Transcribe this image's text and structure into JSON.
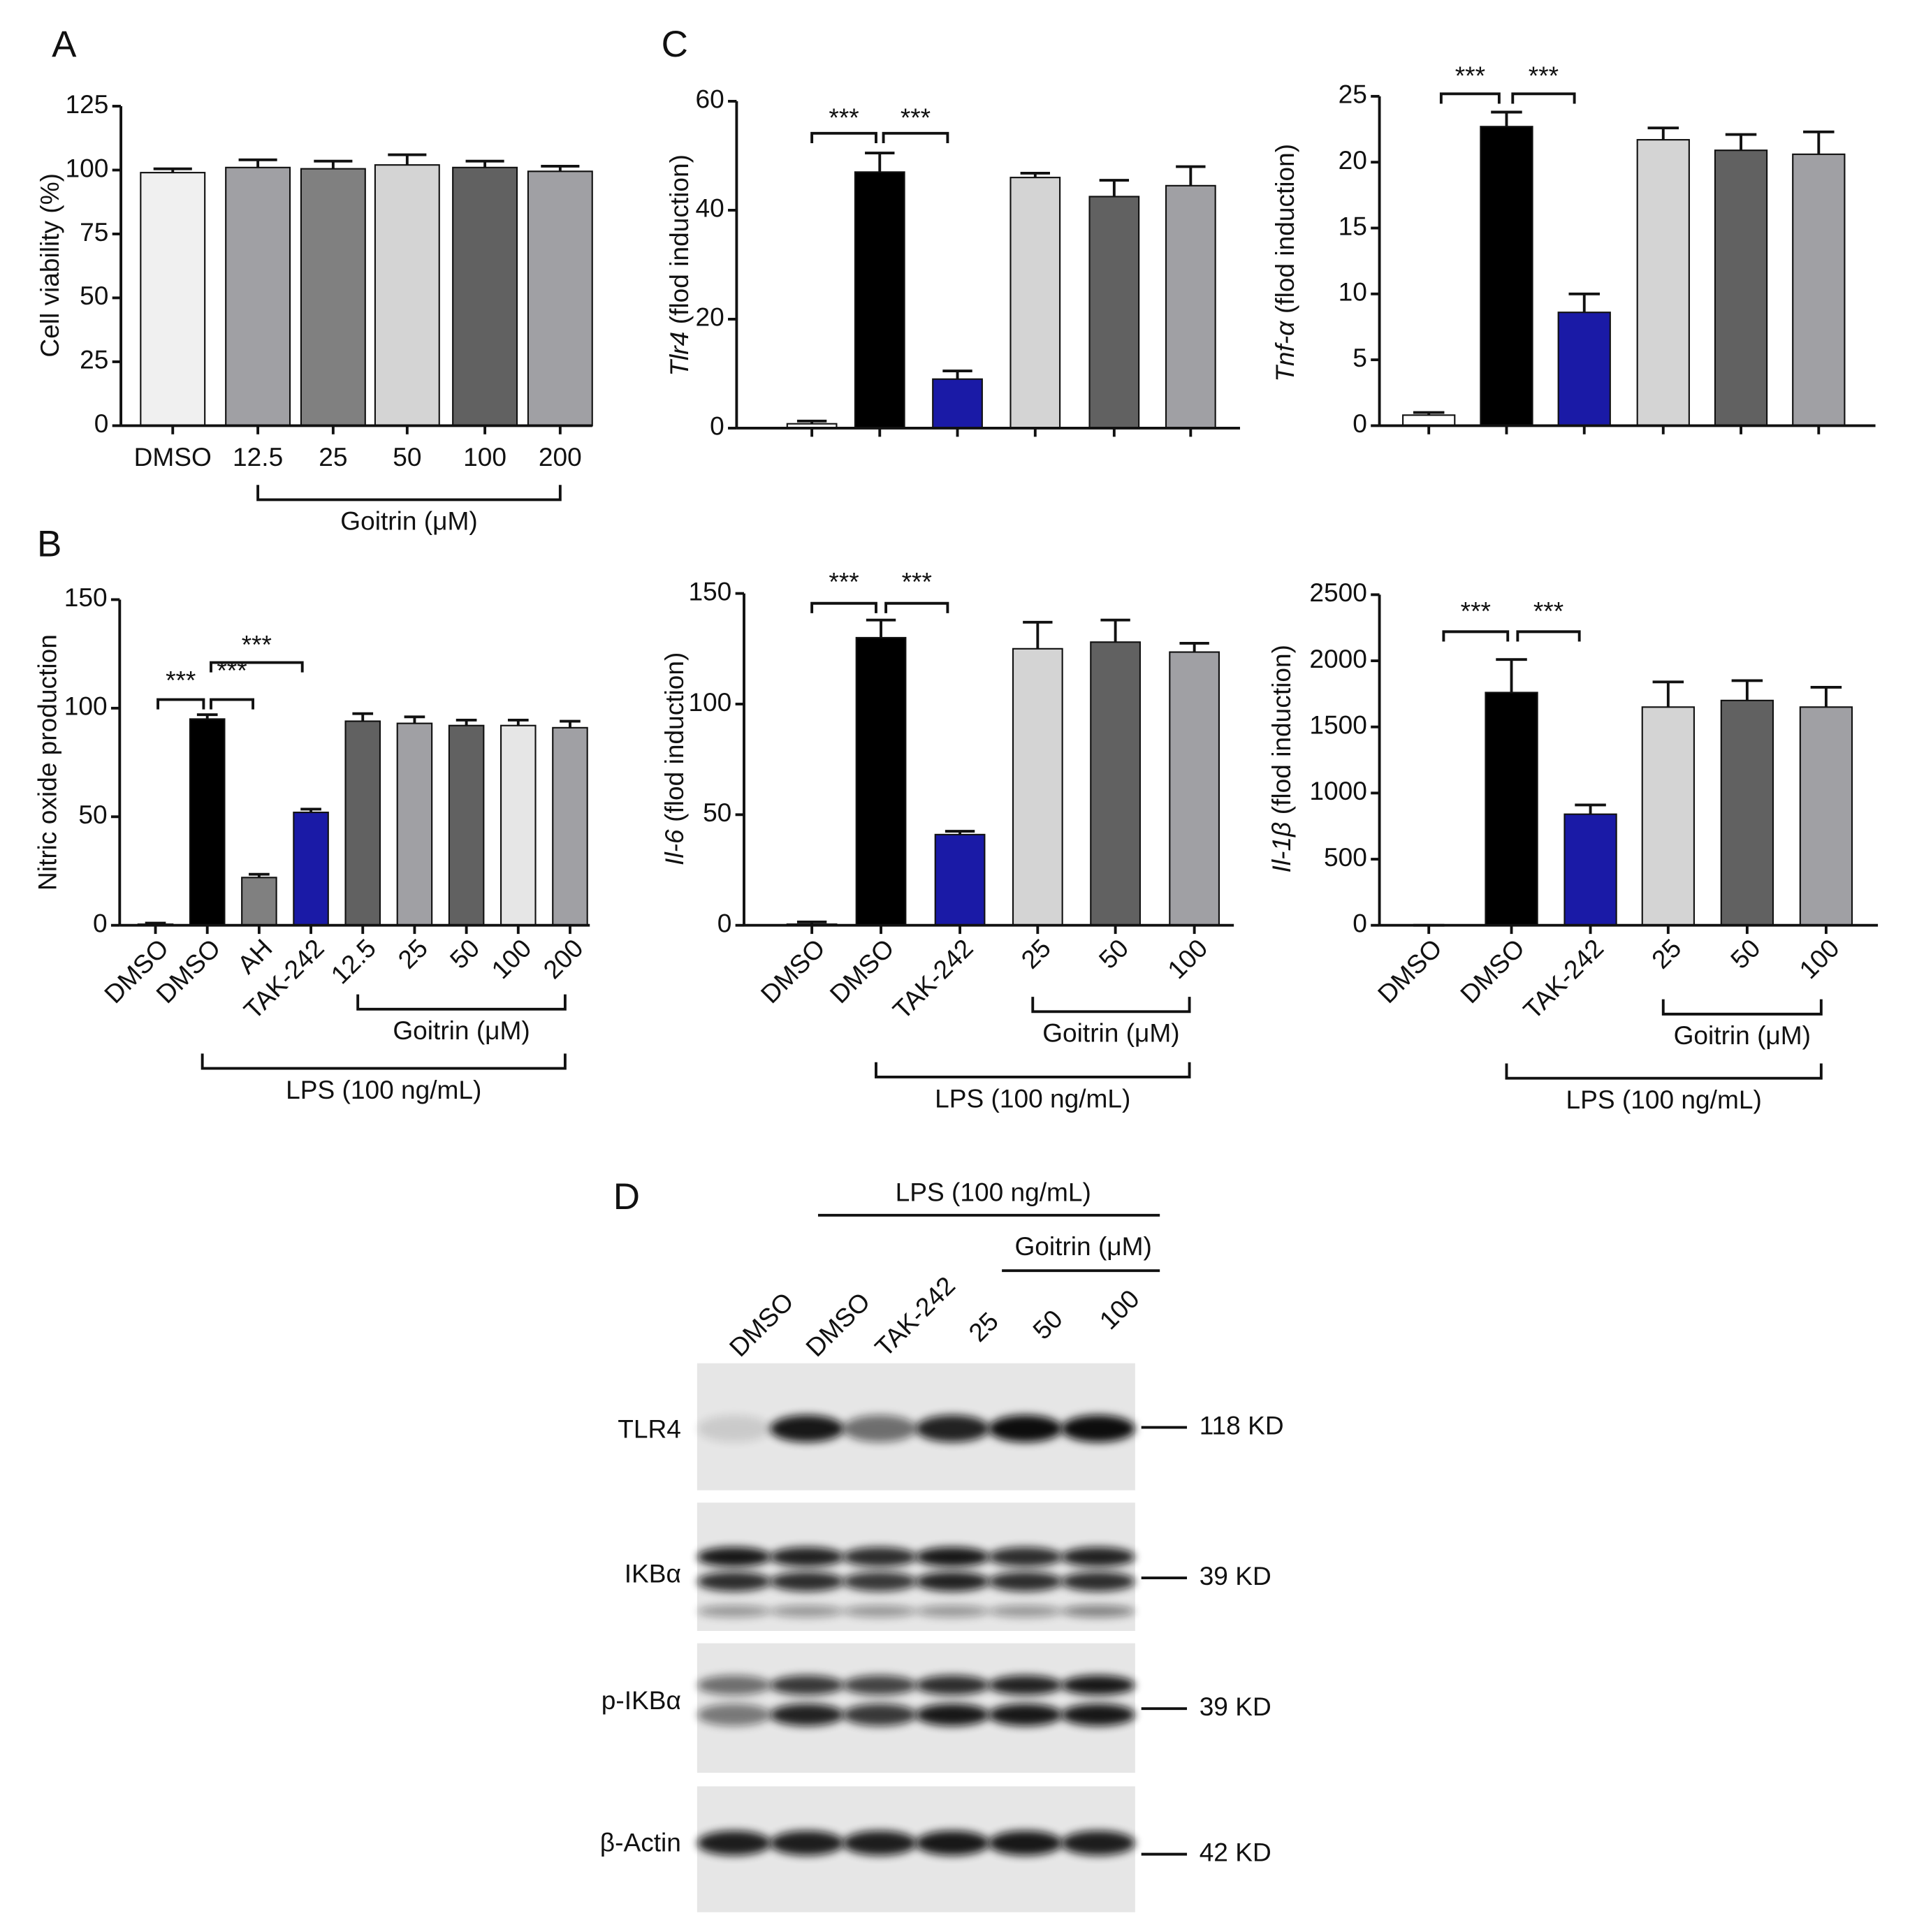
{
  "panel_labels": [
    "A",
    "B",
    "C",
    "D"
  ],
  "chart_data": [
    {
      "type": "bar",
      "ylabel": "Cell viability (%)",
      "categories": [
        "DMSO",
        "12.5",
        "25",
        "50",
        "100",
        "200"
      ],
      "values": [
        99,
        101,
        100.5,
        102,
        101,
        99.5
      ],
      "errors": [
        1.5,
        3,
        3,
        4,
        2.5,
        2
      ],
      "colors": [
        "#f0f0f0",
        "#a0a0a4",
        "#808080",
        "#d4d4d4",
        "#616161",
        "#a0a0a4"
      ],
      "ylim": [
        0,
        125
      ],
      "yticks": [
        0,
        25,
        50,
        75,
        100,
        125
      ],
      "group_labels": [
        "Goitrin (μM)"
      ],
      "significance": []
    },
    {
      "type": "bar",
      "ylabel": "Nitric oxide production",
      "categories": [
        "DMSO",
        "DMSO",
        "AH",
        "TAK-242",
        "12.5",
        "25",
        "50",
        "100",
        "200"
      ],
      "values": [
        0.5,
        95,
        22,
        52,
        94,
        93,
        92,
        92,
        91
      ],
      "errors": [
        0.5,
        2,
        1.5,
        1.5,
        3.5,
        3,
        2.5,
        2.5,
        3
      ],
      "colors": [
        "#ffffff",
        "#000000",
        "#808080",
        "#1a1aa6",
        "#616161",
        "#a0a0a4",
        "#616161",
        "#e6e6e6",
        "#a0a0a4"
      ],
      "ylim": [
        0,
        150
      ],
      "yticks": [
        0,
        50,
        100,
        150
      ],
      "group_labels": [
        "Goitrin (μM)",
        "LPS (100 ng/mL)"
      ],
      "significance": [
        "***",
        "***",
        "***"
      ]
    },
    {
      "type": "bar",
      "ylabel": {
        "gene": "Tlr4",
        "text": "(flod induction)"
      },
      "categories": [
        null,
        null,
        null,
        null,
        null,
        null
      ],
      "values": [
        0.8,
        47,
        9,
        46,
        42.5,
        44.5
      ],
      "errors": [
        0.5,
        3.5,
        1.5,
        0.8,
        3,
        3.5
      ],
      "colors": [
        "#ffffff",
        "#000000",
        "#1a1aa6",
        "#d4d4d4",
        "#616161",
        "#a0a0a4"
      ],
      "ylim": [
        0,
        60
      ],
      "yticks": [
        0,
        20,
        40,
        60
      ],
      "group_labels": [],
      "significance": [
        "***",
        "***"
      ]
    },
    {
      "type": "bar",
      "ylabel": {
        "gene": "Tnf-α",
        "text": "(flod induction)"
      },
      "categories": [
        null,
        null,
        null,
        null,
        null,
        null
      ],
      "values": [
        0.8,
        22.7,
        8.6,
        21.7,
        20.9,
        20.6
      ],
      "errors": [
        0.2,
        1.1,
        1.4,
        0.9,
        1.2,
        1.7
      ],
      "colors": [
        "#ffffff",
        "#000000",
        "#1a1aa6",
        "#d4d4d4",
        "#616161",
        "#a0a0a4"
      ],
      "ylim": [
        0,
        25
      ],
      "yticks": [
        0,
        5,
        10,
        15,
        20,
        25
      ],
      "group_labels": [],
      "significance": [
        "***",
        "***"
      ]
    },
    {
      "type": "bar",
      "ylabel": {
        "gene": "Il-6",
        "text": "(flod induction)"
      },
      "categories": [
        "DMSO",
        "DMSO",
        "TAK-242",
        "25",
        "50",
        "100"
      ],
      "values": [
        0.5,
        130,
        41,
        125,
        128,
        123.5
      ],
      "errors": [
        1,
        8,
        1.5,
        12,
        10,
        4
      ],
      "colors": [
        "#ffffff",
        "#000000",
        "#1a1aa6",
        "#d4d4d4",
        "#616161",
        "#a0a0a4"
      ],
      "ylim": [
        0,
        150
      ],
      "yticks": [
        0,
        50,
        100,
        150
      ],
      "group_labels": [
        "Goitrin (μM)",
        "LPS (100 ng/mL)"
      ],
      "significance": [
        "***",
        "***"
      ]
    },
    {
      "type": "bar",
      "ylabel": {
        "gene": "Il-1β",
        "text": "(flod induction)"
      },
      "categories": [
        "DMSO",
        "DMSO",
        "TAK-242",
        "25",
        "50",
        "100"
      ],
      "values": [
        0,
        1760,
        840,
        1650,
        1700,
        1650
      ],
      "errors": [
        0,
        250,
        70,
        190,
        150,
        150
      ],
      "colors": [
        "#ffffff",
        "#000000",
        "#1a1aa6",
        "#d4d4d4",
        "#616161",
        "#a0a0a4"
      ],
      "ylim": [
        0,
        2500
      ],
      "yticks": [
        0,
        500,
        1000,
        1500,
        2000,
        2500
      ],
      "group_labels": [
        "Goitrin (μM)",
        "LPS (100 ng/mL)"
      ],
      "significance": [
        "***",
        "***"
      ]
    }
  ],
  "blot": {
    "treatment": "LPS (100 ng/mL)",
    "subgroup": "Goitrin (μM)",
    "lanes": [
      "DMSO",
      "DMSO",
      "TAK-242",
      "25",
      "50",
      "100"
    ],
    "rows": [
      {
        "label": "TLR4",
        "size": "118 KD"
      },
      {
        "label": "IKBα",
        "size": "39 KD"
      },
      {
        "label": "p-IKBα",
        "size": "39 KD"
      },
      {
        "label": "β-Actin",
        "size": "42 KD"
      }
    ]
  }
}
